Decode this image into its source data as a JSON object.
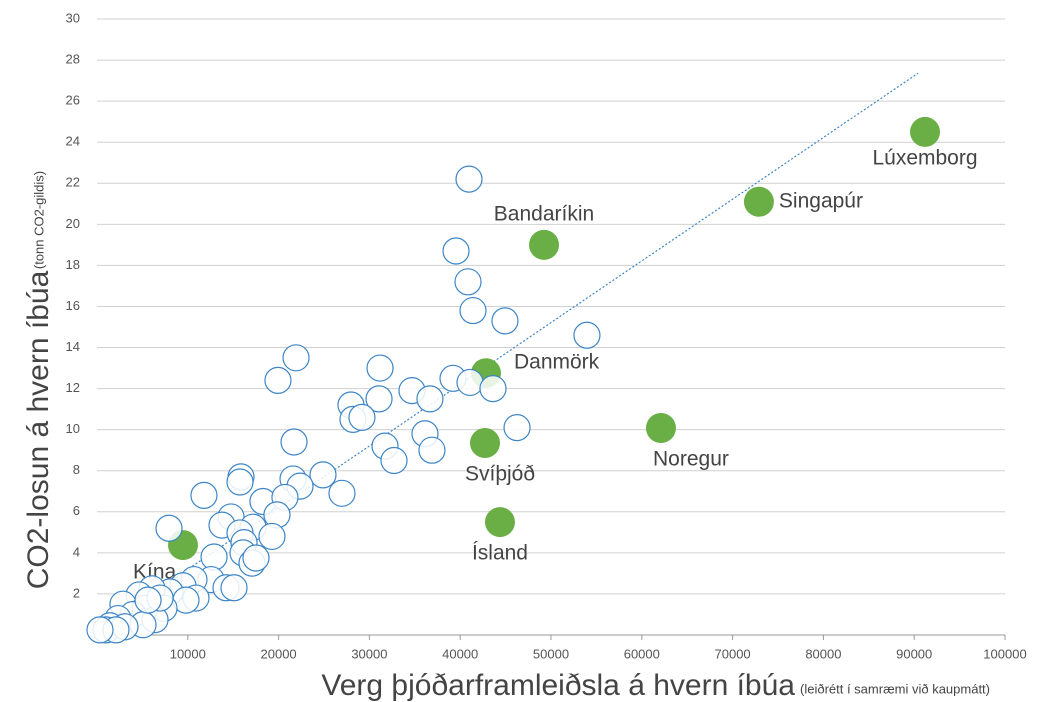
{
  "chart_data": {
    "type": "scatter",
    "xlabel": "Verg þjóðarframleiðsla á hvern íbúa",
    "xlabel_note": "(leiðrétt í samræmi við kaupmátt)",
    "ylabel": "CO2-losun á hvern íbúa",
    "ylabel_note": "(tonn CO2-gildis)",
    "xlim": [
      0,
      100000
    ],
    "ylim": [
      0,
      30
    ],
    "xticks": [
      10000,
      20000,
      30000,
      40000,
      50000,
      60000,
      70000,
      80000,
      90000,
      100000
    ],
    "yticks": [
      2,
      4,
      6,
      8,
      10,
      12,
      14,
      16,
      18,
      20,
      22,
      24,
      26,
      28,
      30
    ],
    "grid": true,
    "series": [
      {
        "color": "#6aaf45",
        "labels": [
          "Kína",
          "Bandaríkin",
          "Lúxemborg",
          "Singapúr",
          "Danmörk",
          "Svíþjóð",
          "Ísland",
          "Noregur"
        ],
        "x": [
          9470,
          49230,
          91190,
          72900,
          42840,
          42730,
          44380,
          62110
        ],
        "values": [
          4.38,
          19.0,
          24.5,
          21.1,
          12.75,
          9.35,
          5.5,
          10.08
        ]
      },
      {
        "color": "#3d85c6",
        "x": [
          40970,
          39540,
          40860,
          41410,
          44930,
          53960,
          21920,
          31170,
          19930,
          39210,
          41080,
          34690,
          36670,
          31060,
          43610,
          27970,
          28190,
          29180,
          46260,
          21700,
          36120,
          31720,
          36890,
          32710,
          15860,
          15750,
          24890,
          21590,
          22360,
          26980,
          11780,
          18280,
          20700,
          19820,
          7930,
          14760,
          13770,
          17180,
          15750,
          16190,
          16080,
          19270,
          17070,
          12890,
          17510,
          12560,
          14210,
          15090,
          10680,
          9470,
          8040,
          6060,
          4630,
          2860,
          10900,
          9800,
          7380,
          5290,
          3960,
          2310,
          1430,
          990,
          6390,
          5070,
          3080,
          2090,
          330,
          6940,
          5620
        ],
        "values": [
          22.2,
          18.7,
          17.2,
          15.8,
          15.3,
          14.6,
          13.5,
          13.0,
          12.4,
          12.5,
          12.3,
          11.9,
          11.5,
          11.5,
          12.0,
          11.2,
          10.5,
          10.6,
          10.1,
          9.4,
          9.8,
          9.2,
          9.0,
          8.5,
          7.7,
          7.45,
          7.8,
          7.6,
          7.25,
          6.9,
          6.8,
          6.5,
          6.7,
          5.85,
          5.2,
          5.75,
          5.35,
          5.25,
          4.97,
          4.5,
          4.0,
          4.8,
          3.5,
          3.8,
          3.75,
          2.7,
          2.3,
          2.3,
          2.7,
          2.4,
          2.1,
          2.25,
          1.95,
          1.5,
          1.8,
          1.7,
          1.3,
          1.3,
          1.0,
          0.8,
          0.45,
          0.25,
          0.75,
          0.5,
          0.4,
          0.25,
          0.25,
          1.8,
          1.7
        ]
      }
    ],
    "trendline": {
      "color": "#3d85c6",
      "x": [
        660,
        90420
      ],
      "values": [
        0.39,
        27.36
      ]
    }
  }
}
